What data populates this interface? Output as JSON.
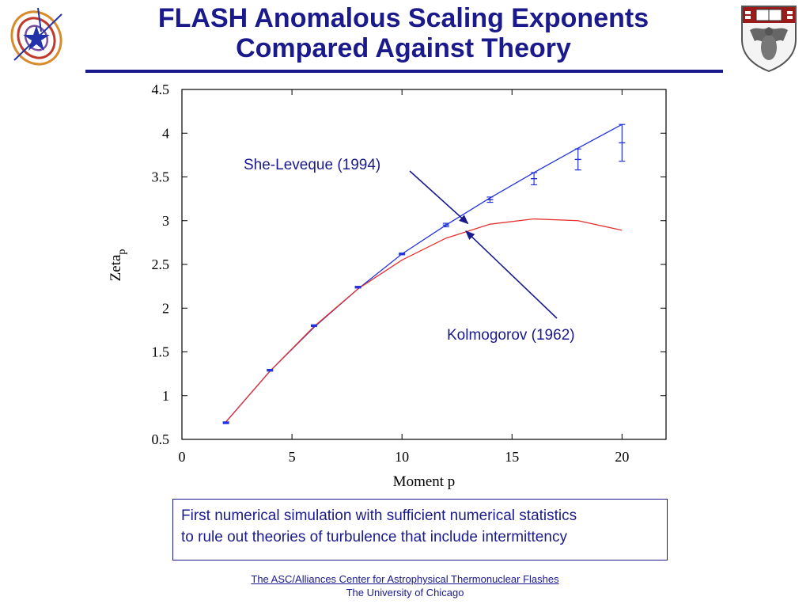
{
  "title": {
    "line1": "FLASH Anomalous Scaling Exponents",
    "line2": "Compared Against Theory"
  },
  "colors": {
    "primary": "#1a1a8c",
    "theory_blue": "#2233dd",
    "theory_red": "#e43030",
    "crest_red": "#9b1b1b"
  },
  "logos": {
    "left": "flash-star-logo",
    "right": "university-of-chicago-crest"
  },
  "caption": {
    "line1": "First numerical simulation with sufficient numerical statistics",
    "line2": "to rule out theories of turbulence that include intermittency"
  },
  "footer": {
    "link": "The ASC/Alliances Center for Astrophysical Thermonuclear Flashes",
    "institution": "The University of Chicago"
  },
  "chart_data": {
    "type": "line",
    "xlabel": "Moment p",
    "ylabel_main": "Zeta",
    "ylabel_sub": "p",
    "xlim": [
      0,
      22
    ],
    "ylim": [
      0.5,
      4.5
    ],
    "xticks": [
      0,
      5,
      10,
      15,
      20
    ],
    "xtick_labels": [
      "0",
      "5",
      "10",
      "15",
      "20"
    ],
    "yticks": [
      0.5,
      1,
      1.5,
      2,
      2.5,
      3,
      3.5,
      4,
      4.5
    ],
    "ytick_labels": [
      "0.5",
      "1",
      "1.5",
      "2",
      "2.5",
      "3",
      "3.5",
      "4",
      "4.5"
    ],
    "grid": false,
    "series": [
      {
        "name": "She-Leveque (1994)",
        "style": "line",
        "color": "#2233dd",
        "x": [
          2,
          4,
          6,
          8,
          10,
          12,
          14,
          16,
          18,
          20
        ],
        "y": [
          0.7,
          1.28,
          1.78,
          2.22,
          2.62,
          2.95,
          3.26,
          3.55,
          3.83,
          4.1
        ]
      },
      {
        "name": "Kolmogorov (1962)",
        "style": "line",
        "color": "#e43030",
        "x": [
          2,
          4,
          6,
          8,
          10,
          12,
          14,
          16,
          18,
          20
        ],
        "y": [
          0.7,
          1.28,
          1.79,
          2.22,
          2.55,
          2.8,
          2.96,
          3.02,
          3.0,
          2.89
        ]
      },
      {
        "style": "errorbar",
        "color": "#2233dd",
        "x": [
          2,
          4,
          6,
          8,
          10,
          12,
          14,
          16,
          18,
          20
        ],
        "y": [
          0.69,
          1.29,
          1.8,
          2.24,
          2.62,
          2.95,
          3.24,
          3.48,
          3.7,
          3.89
        ],
        "err": [
          0.01,
          0.01,
          0.01,
          0.01,
          0.01,
          0.02,
          0.03,
          0.07,
          0.12,
          0.21
        ]
      }
    ],
    "annotations": [
      {
        "text": "She-Leveque (1994)",
        "arrow_to": [
          13.0,
          2.93
        ]
      },
      {
        "text": "Kolmogorov (1962)",
        "arrow_to": [
          12.9,
          2.9
        ]
      }
    ]
  }
}
